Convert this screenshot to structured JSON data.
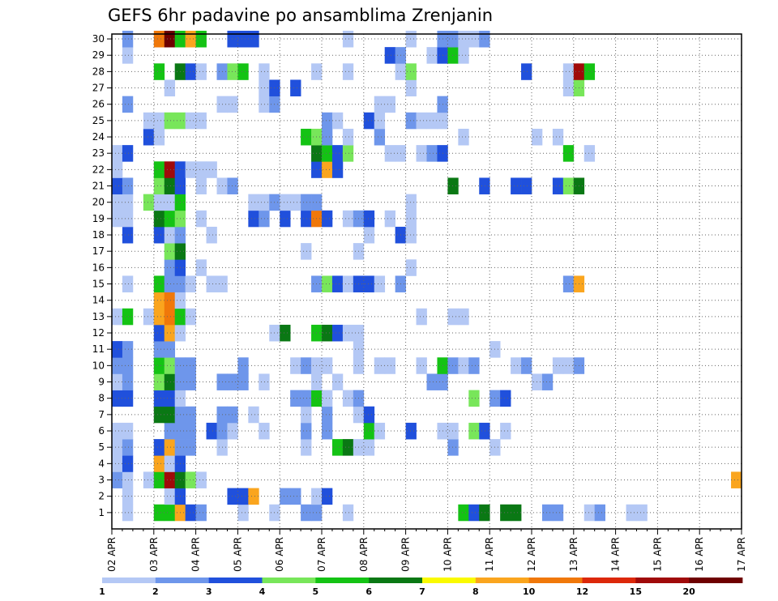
{
  "chart_data": {
    "type": "heatmap",
    "title": "GEFS 6hr padavine po ansamblima Zrenjanin",
    "xlabel": "",
    "ylabel": "",
    "x_ticks": [
      "02 APR",
      "03 APR",
      "04 APR",
      "05 APR",
      "06 APR",
      "07 APR",
      "08 APR",
      "09 APR",
      "10 APR",
      "11 APR",
      "12 APR",
      "13 APR",
      "14 APR",
      "15 APR",
      "16 APR",
      "17 APR"
    ],
    "y_ticks": [
      "1",
      "2",
      "3",
      "4",
      "5",
      "6",
      "7",
      "8",
      "9",
      "10",
      "11",
      "12",
      "13",
      "14",
      "15",
      "16",
      "17",
      "18",
      "19",
      "20",
      "21",
      "22",
      "23",
      "24",
      "25",
      "26",
      "27",
      "28",
      "29",
      "30"
    ],
    "steps_per_day": 4,
    "grid": true,
    "legend": {
      "position": "bottom",
      "labels": [
        "1",
        "2",
        "3",
        "4",
        "5",
        "6",
        "7",
        "8",
        "10",
        "12",
        "15",
        "20"
      ],
      "colors": [
        "#b4c8f5",
        "#6e96eb",
        "#2050dc",
        "#78e65a",
        "#14c314",
        "#0a7814",
        "#fafa00",
        "#faa51e",
        "#f0780a",
        "#dc280a",
        "#a00a0a",
        "#6e0000"
      ]
    },
    "cells": [
      [
        1,
        1,
        1
      ],
      [
        1,
        4,
        5
      ],
      [
        1,
        5,
        5
      ],
      [
        1,
        6,
        8
      ],
      [
        1,
        7,
        3
      ],
      [
        1,
        8,
        2
      ],
      [
        1,
        12,
        1
      ],
      [
        1,
        15,
        1
      ],
      [
        1,
        18,
        2
      ],
      [
        1,
        19,
        2
      ],
      [
        1,
        22,
        1
      ],
      [
        1,
        33,
        5
      ],
      [
        1,
        34,
        3
      ],
      [
        1,
        35,
        6
      ],
      [
        1,
        37,
        6
      ],
      [
        1,
        38,
        6
      ],
      [
        1,
        41,
        2
      ],
      [
        1,
        42,
        2
      ],
      [
        1,
        45,
        1
      ],
      [
        1,
        46,
        2
      ],
      [
        1,
        49,
        1
      ],
      [
        1,
        50,
        1
      ],
      [
        2,
        1,
        1
      ],
      [
        2,
        5,
        1
      ],
      [
        2,
        6,
        3
      ],
      [
        2,
        11,
        3
      ],
      [
        2,
        12,
        3
      ],
      [
        2,
        13,
        8
      ],
      [
        2,
        16,
        2
      ],
      [
        2,
        17,
        2
      ],
      [
        2,
        19,
        1
      ],
      [
        2,
        20,
        3
      ],
      [
        3,
        0,
        2
      ],
      [
        3,
        1,
        1
      ],
      [
        3,
        3,
        1
      ],
      [
        3,
        4,
        5
      ],
      [
        3,
        5,
        15
      ],
      [
        3,
        6,
        6
      ],
      [
        3,
        7,
        4
      ],
      [
        3,
        8,
        1
      ],
      [
        3,
        59,
        9
      ],
      [
        4,
        0,
        1
      ],
      [
        4,
        1,
        3
      ],
      [
        4,
        4,
        8
      ],
      [
        4,
        5,
        1
      ],
      [
        4,
        6,
        3
      ],
      [
        5,
        0,
        1
      ],
      [
        5,
        1,
        2
      ],
      [
        5,
        4,
        3
      ],
      [
        5,
        5,
        9
      ],
      [
        5,
        6,
        2
      ],
      [
        5,
        7,
        2
      ],
      [
        5,
        10,
        1
      ],
      [
        5,
        18,
        1
      ],
      [
        5,
        21,
        5
      ],
      [
        5,
        22,
        6
      ],
      [
        5,
        23,
        1
      ],
      [
        5,
        24,
        1
      ],
      [
        5,
        32,
        2
      ],
      [
        5,
        36,
        1
      ],
      [
        6,
        0,
        1
      ],
      [
        6,
        1,
        1
      ],
      [
        6,
        5,
        2
      ],
      [
        6,
        6,
        2
      ],
      [
        6,
        7,
        2
      ],
      [
        6,
        9,
        3
      ],
      [
        6,
        10,
        2
      ],
      [
        6,
        11,
        1
      ],
      [
        6,
        14,
        1
      ],
      [
        6,
        18,
        2
      ],
      [
        6,
        20,
        2
      ],
      [
        6,
        24,
        5
      ],
      [
        6,
        25,
        1
      ],
      [
        6,
        28,
        3
      ],
      [
        6,
        31,
        1
      ],
      [
        6,
        32,
        1
      ],
      [
        6,
        34,
        4
      ],
      [
        6,
        35,
        3
      ],
      [
        6,
        37,
        1
      ],
      [
        7,
        4,
        6
      ],
      [
        7,
        5,
        6
      ],
      [
        7,
        6,
        2
      ],
      [
        7,
        7,
        2
      ],
      [
        7,
        10,
        2
      ],
      [
        7,
        11,
        2
      ],
      [
        7,
        13,
        1
      ],
      [
        7,
        18,
        1
      ],
      [
        7,
        20,
        2
      ],
      [
        7,
        23,
        1
      ],
      [
        7,
        24,
        3
      ],
      [
        8,
        0,
        3
      ],
      [
        8,
        1,
        3
      ],
      [
        8,
        4,
        3
      ],
      [
        8,
        5,
        3
      ],
      [
        8,
        6,
        1
      ],
      [
        8,
        17,
        2
      ],
      [
        8,
        18,
        2
      ],
      [
        8,
        19,
        5
      ],
      [
        8,
        20,
        1
      ],
      [
        8,
        22,
        1
      ],
      [
        8,
        23,
        2
      ],
      [
        8,
        34,
        4
      ],
      [
        8,
        36,
        2
      ],
      [
        8,
        37,
        3
      ],
      [
        9,
        0,
        1
      ],
      [
        9,
        1,
        2
      ],
      [
        9,
        4,
        4
      ],
      [
        9,
        5,
        6
      ],
      [
        9,
        6,
        2
      ],
      [
        9,
        7,
        2
      ],
      [
        9,
        10,
        2
      ],
      [
        9,
        11,
        2
      ],
      [
        9,
        12,
        2
      ],
      [
        9,
        14,
        1
      ],
      [
        9,
        19,
        1
      ],
      [
        9,
        21,
        1
      ],
      [
        9,
        30,
        2
      ],
      [
        9,
        31,
        2
      ],
      [
        9,
        40,
        1
      ],
      [
        9,
        41,
        2
      ],
      [
        10,
        0,
        2
      ],
      [
        10,
        1,
        2
      ],
      [
        10,
        4,
        5
      ],
      [
        10,
        5,
        4
      ],
      [
        10,
        6,
        2
      ],
      [
        10,
        7,
        2
      ],
      [
        10,
        12,
        2
      ],
      [
        10,
        17,
        1
      ],
      [
        10,
        18,
        2
      ],
      [
        10,
        19,
        1
      ],
      [
        10,
        20,
        1
      ],
      [
        10,
        23,
        1
      ],
      [
        10,
        25,
        1
      ],
      [
        10,
        26,
        1
      ],
      [
        10,
        29,
        1
      ],
      [
        10,
        31,
        5
      ],
      [
        10,
        32,
        2
      ],
      [
        10,
        33,
        1
      ],
      [
        10,
        34,
        2
      ],
      [
        10,
        38,
        1
      ],
      [
        10,
        39,
        2
      ],
      [
        10,
        42,
        1
      ],
      [
        10,
        43,
        1
      ],
      [
        10,
        44,
        2
      ],
      [
        11,
        0,
        3
      ],
      [
        11,
        1,
        2
      ],
      [
        11,
        4,
        2
      ],
      [
        11,
        5,
        2
      ],
      [
        11,
        23,
        1
      ],
      [
        11,
        36,
        1
      ],
      [
        12,
        4,
        3
      ],
      [
        12,
        5,
        9
      ],
      [
        12,
        6,
        1
      ],
      [
        12,
        15,
        1
      ],
      [
        12,
        16,
        6
      ],
      [
        12,
        19,
        5
      ],
      [
        12,
        20,
        6
      ],
      [
        12,
        21,
        3
      ],
      [
        12,
        22,
        1
      ],
      [
        12,
        23,
        1
      ],
      [
        13,
        0,
        1
      ],
      [
        13,
        1,
        5
      ],
      [
        13,
        3,
        1
      ],
      [
        13,
        4,
        8
      ],
      [
        13,
        5,
        10
      ],
      [
        13,
        6,
        5
      ],
      [
        13,
        7,
        1
      ],
      [
        13,
        29,
        1
      ],
      [
        13,
        32,
        1
      ],
      [
        13,
        33,
        1
      ],
      [
        14,
        4,
        8
      ],
      [
        14,
        5,
        10
      ],
      [
        14,
        6,
        1
      ],
      [
        15,
        1,
        1
      ],
      [
        15,
        4,
        5
      ],
      [
        15,
        5,
        2
      ],
      [
        15,
        6,
        2
      ],
      [
        15,
        7,
        1
      ],
      [
        15,
        9,
        1
      ],
      [
        15,
        10,
        1
      ],
      [
        15,
        19,
        2
      ],
      [
        15,
        20,
        4
      ],
      [
        15,
        21,
        3
      ],
      [
        15,
        22,
        1
      ],
      [
        15,
        23,
        3
      ],
      [
        15,
        24,
        3
      ],
      [
        15,
        25,
        1
      ],
      [
        15,
        27,
        2
      ],
      [
        15,
        43,
        2
      ],
      [
        15,
        44,
        9
      ],
      [
        16,
        5,
        2
      ],
      [
        16,
        6,
        3
      ],
      [
        16,
        8,
        1
      ],
      [
        16,
        28,
        1
      ],
      [
        17,
        5,
        4
      ],
      [
        17,
        6,
        6
      ],
      [
        17,
        18,
        1
      ],
      [
        17,
        23,
        1
      ],
      [
        18,
        1,
        3
      ],
      [
        18,
        4,
        3
      ],
      [
        18,
        5,
        1
      ],
      [
        18,
        6,
        2
      ],
      [
        18,
        9,
        1
      ],
      [
        18,
        24,
        1
      ],
      [
        18,
        27,
        3
      ],
      [
        18,
        28,
        1
      ],
      [
        19,
        0,
        1
      ],
      [
        19,
        1,
        1
      ],
      [
        19,
        4,
        6
      ],
      [
        19,
        5,
        5
      ],
      [
        19,
        6,
        4
      ],
      [
        19,
        8,
        1
      ],
      [
        19,
        13,
        3
      ],
      [
        19,
        14,
        2
      ],
      [
        19,
        16,
        3
      ],
      [
        19,
        18,
        3
      ],
      [
        19,
        19,
        11
      ],
      [
        19,
        20,
        3
      ],
      [
        19,
        22,
        1
      ],
      [
        19,
        23,
        2
      ],
      [
        19,
        24,
        3
      ],
      [
        19,
        26,
        1
      ],
      [
        19,
        28,
        1
      ],
      [
        20,
        0,
        1
      ],
      [
        20,
        1,
        1
      ],
      [
        20,
        3,
        4
      ],
      [
        20,
        4,
        1
      ],
      [
        20,
        5,
        1
      ],
      [
        20,
        6,
        5
      ],
      [
        20,
        13,
        1
      ],
      [
        20,
        14,
        1
      ],
      [
        20,
        15,
        2
      ],
      [
        20,
        16,
        1
      ],
      [
        20,
        17,
        1
      ],
      [
        20,
        18,
        2
      ],
      [
        20,
        19,
        2
      ],
      [
        20,
        28,
        1
      ],
      [
        21,
        0,
        3
      ],
      [
        21,
        1,
        2
      ],
      [
        21,
        4,
        4
      ],
      [
        21,
        5,
        6
      ],
      [
        21,
        6,
        3
      ],
      [
        21,
        8,
        1
      ],
      [
        21,
        10,
        1
      ],
      [
        21,
        11,
        2
      ],
      [
        21,
        32,
        6
      ],
      [
        21,
        35,
        3
      ],
      [
        21,
        38,
        3
      ],
      [
        21,
        39,
        3
      ],
      [
        21,
        42,
        3
      ],
      [
        21,
        43,
        4
      ],
      [
        21,
        44,
        6
      ],
      [
        22,
        0,
        1
      ],
      [
        22,
        4,
        5
      ],
      [
        22,
        5,
        15
      ],
      [
        22,
        6,
        3
      ],
      [
        22,
        7,
        1
      ],
      [
        22,
        8,
        1
      ],
      [
        22,
        9,
        1
      ],
      [
        22,
        19,
        3
      ],
      [
        22,
        20,
        9
      ],
      [
        22,
        21,
        3
      ],
      [
        23,
        0,
        1
      ],
      [
        23,
        1,
        3
      ],
      [
        23,
        19,
        6
      ],
      [
        23,
        20,
        5
      ],
      [
        23,
        21,
        3
      ],
      [
        23,
        22,
        4
      ],
      [
        23,
        26,
        1
      ],
      [
        23,
        27,
        1
      ],
      [
        23,
        29,
        1
      ],
      [
        23,
        30,
        2
      ],
      [
        23,
        31,
        3
      ],
      [
        23,
        43,
        5
      ],
      [
        23,
        45,
        1
      ],
      [
        24,
        3,
        3
      ],
      [
        24,
        4,
        1
      ],
      [
        24,
        18,
        5
      ],
      [
        24,
        19,
        4
      ],
      [
        24,
        20,
        2
      ],
      [
        24,
        22,
        1
      ],
      [
        24,
        25,
        2
      ],
      [
        24,
        33,
        1
      ],
      [
        24,
        40,
        1
      ],
      [
        24,
        42,
        1
      ],
      [
        25,
        3,
        1
      ],
      [
        25,
        4,
        1
      ],
      [
        25,
        5,
        4
      ],
      [
        25,
        6,
        4
      ],
      [
        25,
        7,
        1
      ],
      [
        25,
        8,
        1
      ],
      [
        25,
        20,
        2
      ],
      [
        25,
        21,
        1
      ],
      [
        25,
        24,
        3
      ],
      [
        25,
        25,
        1
      ],
      [
        25,
        28,
        2
      ],
      [
        25,
        29,
        1
      ],
      [
        25,
        30,
        1
      ],
      [
        25,
        31,
        1
      ],
      [
        26,
        1,
        2
      ],
      [
        26,
        10,
        1
      ],
      [
        26,
        11,
        1
      ],
      [
        26,
        14,
        1
      ],
      [
        26,
        15,
        2
      ],
      [
        26,
        25,
        1
      ],
      [
        26,
        26,
        1
      ],
      [
        26,
        31,
        2
      ],
      [
        27,
        5,
        1
      ],
      [
        27,
        14,
        1
      ],
      [
        27,
        15,
        3
      ],
      [
        27,
        17,
        3
      ],
      [
        27,
        28,
        1
      ],
      [
        27,
        43,
        1
      ],
      [
        27,
        44,
        4
      ],
      [
        28,
        4,
        5
      ],
      [
        28,
        6,
        6
      ],
      [
        28,
        7,
        3
      ],
      [
        28,
        8,
        1
      ],
      [
        28,
        10,
        2
      ],
      [
        28,
        11,
        4
      ],
      [
        28,
        12,
        5
      ],
      [
        28,
        14,
        1
      ],
      [
        28,
        19,
        1
      ],
      [
        28,
        22,
        1
      ],
      [
        28,
        27,
        1
      ],
      [
        28,
        28,
        4
      ],
      [
        28,
        39,
        3
      ],
      [
        28,
        43,
        1
      ],
      [
        28,
        44,
        15
      ],
      [
        28,
        45,
        5
      ],
      [
        29,
        1,
        1
      ],
      [
        29,
        26,
        3
      ],
      [
        29,
        27,
        2
      ],
      [
        29,
        30,
        1
      ],
      [
        29,
        31,
        3
      ],
      [
        29,
        32,
        5
      ],
      [
        29,
        33,
        1
      ],
      [
        30,
        1,
        2
      ],
      [
        30,
        4,
        10
      ],
      [
        30,
        5,
        20
      ],
      [
        30,
        6,
        5
      ],
      [
        30,
        7,
        8
      ],
      [
        30,
        8,
        5
      ],
      [
        30,
        11,
        3
      ],
      [
        30,
        12,
        3
      ],
      [
        30,
        13,
        3
      ],
      [
        30,
        22,
        1
      ],
      [
        30,
        28,
        1
      ],
      [
        30,
        31,
        2
      ],
      [
        30,
        32,
        2
      ],
      [
        30,
        33,
        1
      ],
      [
        30,
        34,
        1
      ],
      [
        30,
        35,
        2
      ]
    ]
  }
}
